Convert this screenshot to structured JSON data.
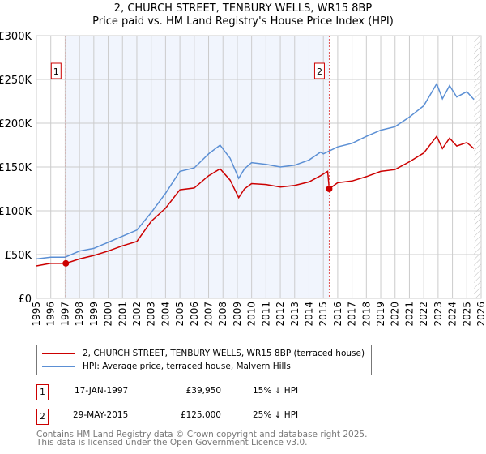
{
  "title_line1": "2, CHURCH STREET, TENBURY WELLS, WR15 8BP",
  "title_line2": "Price paid vs. HM Land Registry's House Price Index (HPI)",
  "chart_data": {
    "type": "line",
    "title": "2, CHURCH STREET, TENBURY WELLS, WR15 8BP — Price paid vs. HM Land Registry's House Price Index (HPI)",
    "xlim": [
      1995,
      2026
    ],
    "ylim": [
      0,
      300000
    ],
    "y_ticks": [
      0,
      50000,
      100000,
      150000,
      200000,
      250000,
      300000
    ],
    "y_tick_labels": [
      "£0",
      "£50K",
      "£100K",
      "£150K",
      "£200K",
      "£250K",
      "£300K"
    ],
    "x_ticks": [
      "1995",
      "1996",
      "1997",
      "1998",
      "1999",
      "2000",
      "2001",
      "2002",
      "2003",
      "2004",
      "2005",
      "2006",
      "2007",
      "2008",
      "2009",
      "2010",
      "2011",
      "2012",
      "2013",
      "2014",
      "2015",
      "2016",
      "2017",
      "2018",
      "2019",
      "2020",
      "2021",
      "2022",
      "2023",
      "2024",
      "2025",
      "2026"
    ],
    "grid": true,
    "shaded_range": [
      1997.05,
      2015.41
    ],
    "hatched_from": 2025.5,
    "series": [
      {
        "name": "2, CHURCH STREET, TENBURY WELLS, WR15 8BP (terraced house)",
        "color": "#cc0000",
        "x": [
          1995,
          1996,
          1997.05,
          1998,
          1999,
          2000,
          2001,
          2002,
          2003,
          2004,
          2005,
          2006,
          2007,
          2007.8,
          2008.5,
          2009.1,
          2009.5,
          2010,
          2011,
          2012,
          2013,
          2014,
          2014.8,
          2015.3,
          2015.41,
          2016,
          2017,
          2018,
          2019,
          2020,
          2021,
          2022,
          2022.9,
          2023.3,
          2023.8,
          2024.3,
          2025,
          2025.5
        ],
        "y": [
          37000,
          40000,
          39950,
          45000,
          49000,
          54000,
          60000,
          65000,
          88000,
          103000,
          124000,
          126000,
          140000,
          148000,
          135000,
          115000,
          125000,
          131000,
          130000,
          127000,
          129000,
          133000,
          140000,
          145000,
          125000,
          132000,
          134000,
          139000,
          145000,
          147000,
          156000,
          166000,
          185000,
          171000,
          183000,
          174000,
          178000,
          171000
        ]
      },
      {
        "name": "HPI: Average price, terraced house, Malvern Hills",
        "color": "#5b8fd4",
        "x": [
          1995,
          1996,
          1997,
          1998,
          1999,
          2000,
          2001,
          2002,
          2003,
          2004,
          2005,
          2006,
          2007,
          2007.8,
          2008.5,
          2009.1,
          2009.5,
          2010,
          2011,
          2012,
          2013,
          2014,
          2014.8,
          2015,
          2016,
          2017,
          2018,
          2019,
          2020,
          2021,
          2022,
          2022.9,
          2023.3,
          2023.8,
          2024.3,
          2025,
          2025.5
        ],
        "y": [
          45000,
          47000,
          47000,
          54000,
          57000,
          64000,
          71000,
          78000,
          98000,
          120000,
          145000,
          149000,
          165000,
          175000,
          160000,
          137000,
          148000,
          155000,
          153000,
          150000,
          152000,
          158000,
          167000,
          165000,
          173000,
          177000,
          185000,
          192000,
          196000,
          207000,
          220000,
          245000,
          228000,
          243000,
          230000,
          236000,
          227000
        ]
      }
    ],
    "annotations": [
      {
        "label": "1",
        "x": 1997.05,
        "y": 39950
      },
      {
        "label": "2",
        "x": 2015.41,
        "y": 125000
      }
    ]
  },
  "legend": {
    "items": [
      {
        "label": "2, CHURCH STREET, TENBURY WELLS, WR15 8BP (terraced house)",
        "color": "#cc0000"
      },
      {
        "label": "HPI: Average price, terraced house, Malvern Hills",
        "color": "#5b8fd4"
      }
    ]
  },
  "transactions": [
    {
      "num": "1",
      "date": "17-JAN-1997",
      "price": "£39,950",
      "hpi": "15% ↓ HPI"
    },
    {
      "num": "2",
      "date": "29-MAY-2015",
      "price": "£125,000",
      "hpi": "25% ↓ HPI"
    }
  ],
  "footer": {
    "line1": "Contains HM Land Registry data © Crown copyright and database right 2025.",
    "line2": "This data is licensed under the Open Government Licence v3.0."
  }
}
